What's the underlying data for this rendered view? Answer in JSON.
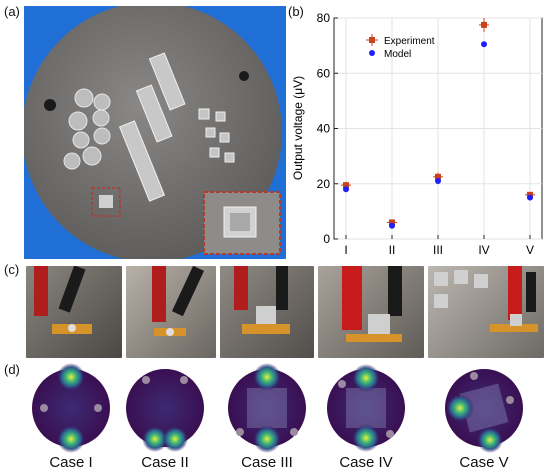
{
  "panels": {
    "a": "(a)",
    "b": "(b)",
    "c": "(c)",
    "d": "(d)"
  },
  "chart_data": {
    "type": "scatter",
    "categories": [
      "I",
      "II",
      "III",
      "IV",
      "V"
    ],
    "ylabel": "Output voltage (μV)",
    "ylim": [
      0,
      80
    ],
    "yticks": [
      0,
      20,
      40,
      60,
      80
    ],
    "grid": true,
    "legend_position": "top-left",
    "series": [
      {
        "name": "Experiment",
        "values": [
          19.5,
          6,
          22.5,
          77.5,
          16
        ],
        "errors": [
          1.2,
          1.0,
          1.5,
          2.5,
          1.0
        ],
        "color": "#c8421b",
        "marker": "square-with-error-bars"
      },
      {
        "name": "Model",
        "values": [
          18,
          4.8,
          21,
          70.5,
          15
        ],
        "color": "#1f1fff",
        "marker": "circle"
      }
    ]
  },
  "cases": [
    "Case I",
    "Case II",
    "Case III",
    "Case IV",
    "Case V"
  ],
  "colors": {
    "plate": "#6e6c6a",
    "background_blue": "#1f6fd6",
    "dashed_box": "#b23a2f",
    "field_dark": "#3a1a5a",
    "field_bright": "#e6f03a"
  }
}
